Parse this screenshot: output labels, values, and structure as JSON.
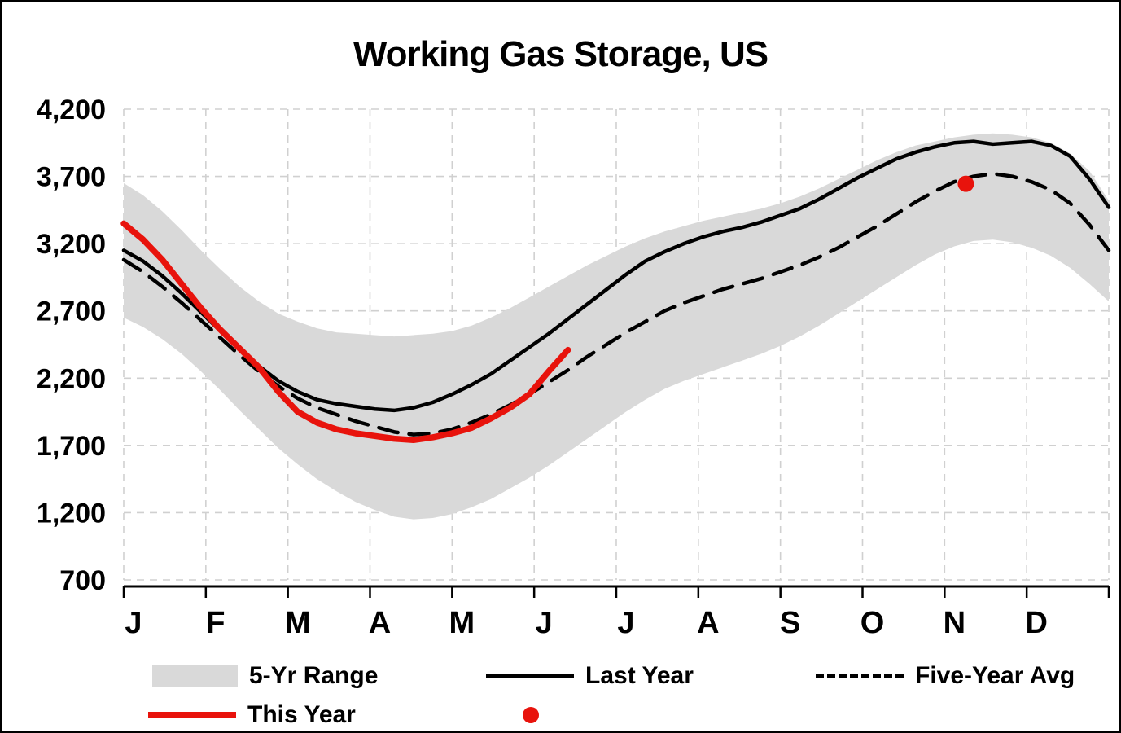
{
  "title": "Working Gas Storage, US",
  "colors": {
    "band": "#d9d9d9",
    "last_year": "#000000",
    "five_year_avg": "#000000",
    "this_year": "#e8130c",
    "grid": "#d0d0d0",
    "axis": "#000000"
  },
  "legend": {
    "range_label": "5-Yr Range",
    "last_year_label": "Last Year",
    "five_year_avg_label": "Five-Year Avg",
    "this_year_label": "This Year"
  },
  "chart_data": {
    "type": "line",
    "title": "Working Gas Storage, US",
    "xlabel": "",
    "ylabel": "",
    "ylim": [
      700,
      4200
    ],
    "yticks": [
      700,
      1200,
      1700,
      2200,
      2700,
      3200,
      3700,
      4200
    ],
    "x_categories": [
      "J",
      "F",
      "M",
      "A",
      "M",
      "J",
      "J",
      "A",
      "S",
      "O",
      "N",
      "D"
    ],
    "x_unit": "weekly points, Jan-Dec",
    "grid": "dashed",
    "legend_position": "bottom",
    "series": [
      {
        "name": "5-Yr Range",
        "type": "band",
        "color": "#d9d9d9",
        "upper": [
          3650,
          3560,
          3440,
          3300,
          3150,
          3010,
          2880,
          2770,
          2680,
          2620,
          2570,
          2540,
          2530,
          2520,
          2510,
          2520,
          2530,
          2550,
          2590,
          2650,
          2720,
          2800,
          2880,
          2960,
          3040,
          3110,
          3180,
          3240,
          3290,
          3330,
          3370,
          3400,
          3430,
          3460,
          3500,
          3550,
          3610,
          3680,
          3750,
          3820,
          3880,
          3930,
          3960,
          3990,
          4010,
          4020,
          4010,
          3990,
          3950,
          3870,
          3740,
          3520
        ],
        "lower": [
          2650,
          2580,
          2490,
          2380,
          2250,
          2110,
          1960,
          1820,
          1680,
          1560,
          1450,
          1360,
          1280,
          1220,
          1170,
          1150,
          1160,
          1190,
          1240,
          1300,
          1380,
          1460,
          1550,
          1650,
          1750,
          1850,
          1950,
          2040,
          2120,
          2180,
          2230,
          2280,
          2330,
          2380,
          2440,
          2510,
          2590,
          2680,
          2770,
          2860,
          2950,
          3040,
          3120,
          3180,
          3220,
          3230,
          3210,
          3170,
          3110,
          3020,
          2900,
          2770
        ]
      },
      {
        "name": "Last Year",
        "type": "line",
        "style": "solid",
        "color": "#000000",
        "values": [
          3150,
          3070,
          2960,
          2830,
          2690,
          2550,
          2410,
          2290,
          2180,
          2100,
          2040,
          2010,
          1990,
          1970,
          1960,
          1980,
          2020,
          2080,
          2150,
          2230,
          2330,
          2430,
          2530,
          2640,
          2750,
          2860,
          2970,
          3070,
          3140,
          3200,
          3250,
          3290,
          3320,
          3360,
          3410,
          3460,
          3530,
          3610,
          3690,
          3760,
          3830,
          3880,
          3920,
          3950,
          3960,
          3940,
          3950,
          3960,
          3930,
          3850,
          3680,
          3470
        ]
      },
      {
        "name": "Five-Year Avg",
        "type": "line",
        "style": "dashed",
        "color": "#000000",
        "values": [
          3080,
          2990,
          2880,
          2760,
          2630,
          2500,
          2370,
          2250,
          2140,
          2050,
          1980,
          1930,
          1880,
          1840,
          1800,
          1780,
          1790,
          1820,
          1870,
          1930,
          2000,
          2080,
          2170,
          2260,
          2360,
          2450,
          2540,
          2620,
          2700,
          2760,
          2810,
          2860,
          2900,
          2940,
          2990,
          3040,
          3100,
          3170,
          3250,
          3330,
          3420,
          3510,
          3590,
          3660,
          3700,
          3720,
          3700,
          3660,
          3600,
          3500,
          3340,
          3150
        ]
      },
      {
        "name": "This Year",
        "type": "line",
        "style": "solid",
        "color": "#e8130c",
        "values": [
          3350,
          3230,
          3080,
          2900,
          2720,
          2560,
          2420,
          2280,
          2100,
          1950,
          1870,
          1820,
          1790,
          1770,
          1750,
          1740,
          1760,
          1790,
          1830,
          1900,
          1980,
          2080,
          2250,
          2410
        ]
      },
      {
        "name": "Latest Point",
        "type": "point",
        "color": "#e8130c",
        "x_week": 43.6,
        "value": 3645
      }
    ]
  }
}
